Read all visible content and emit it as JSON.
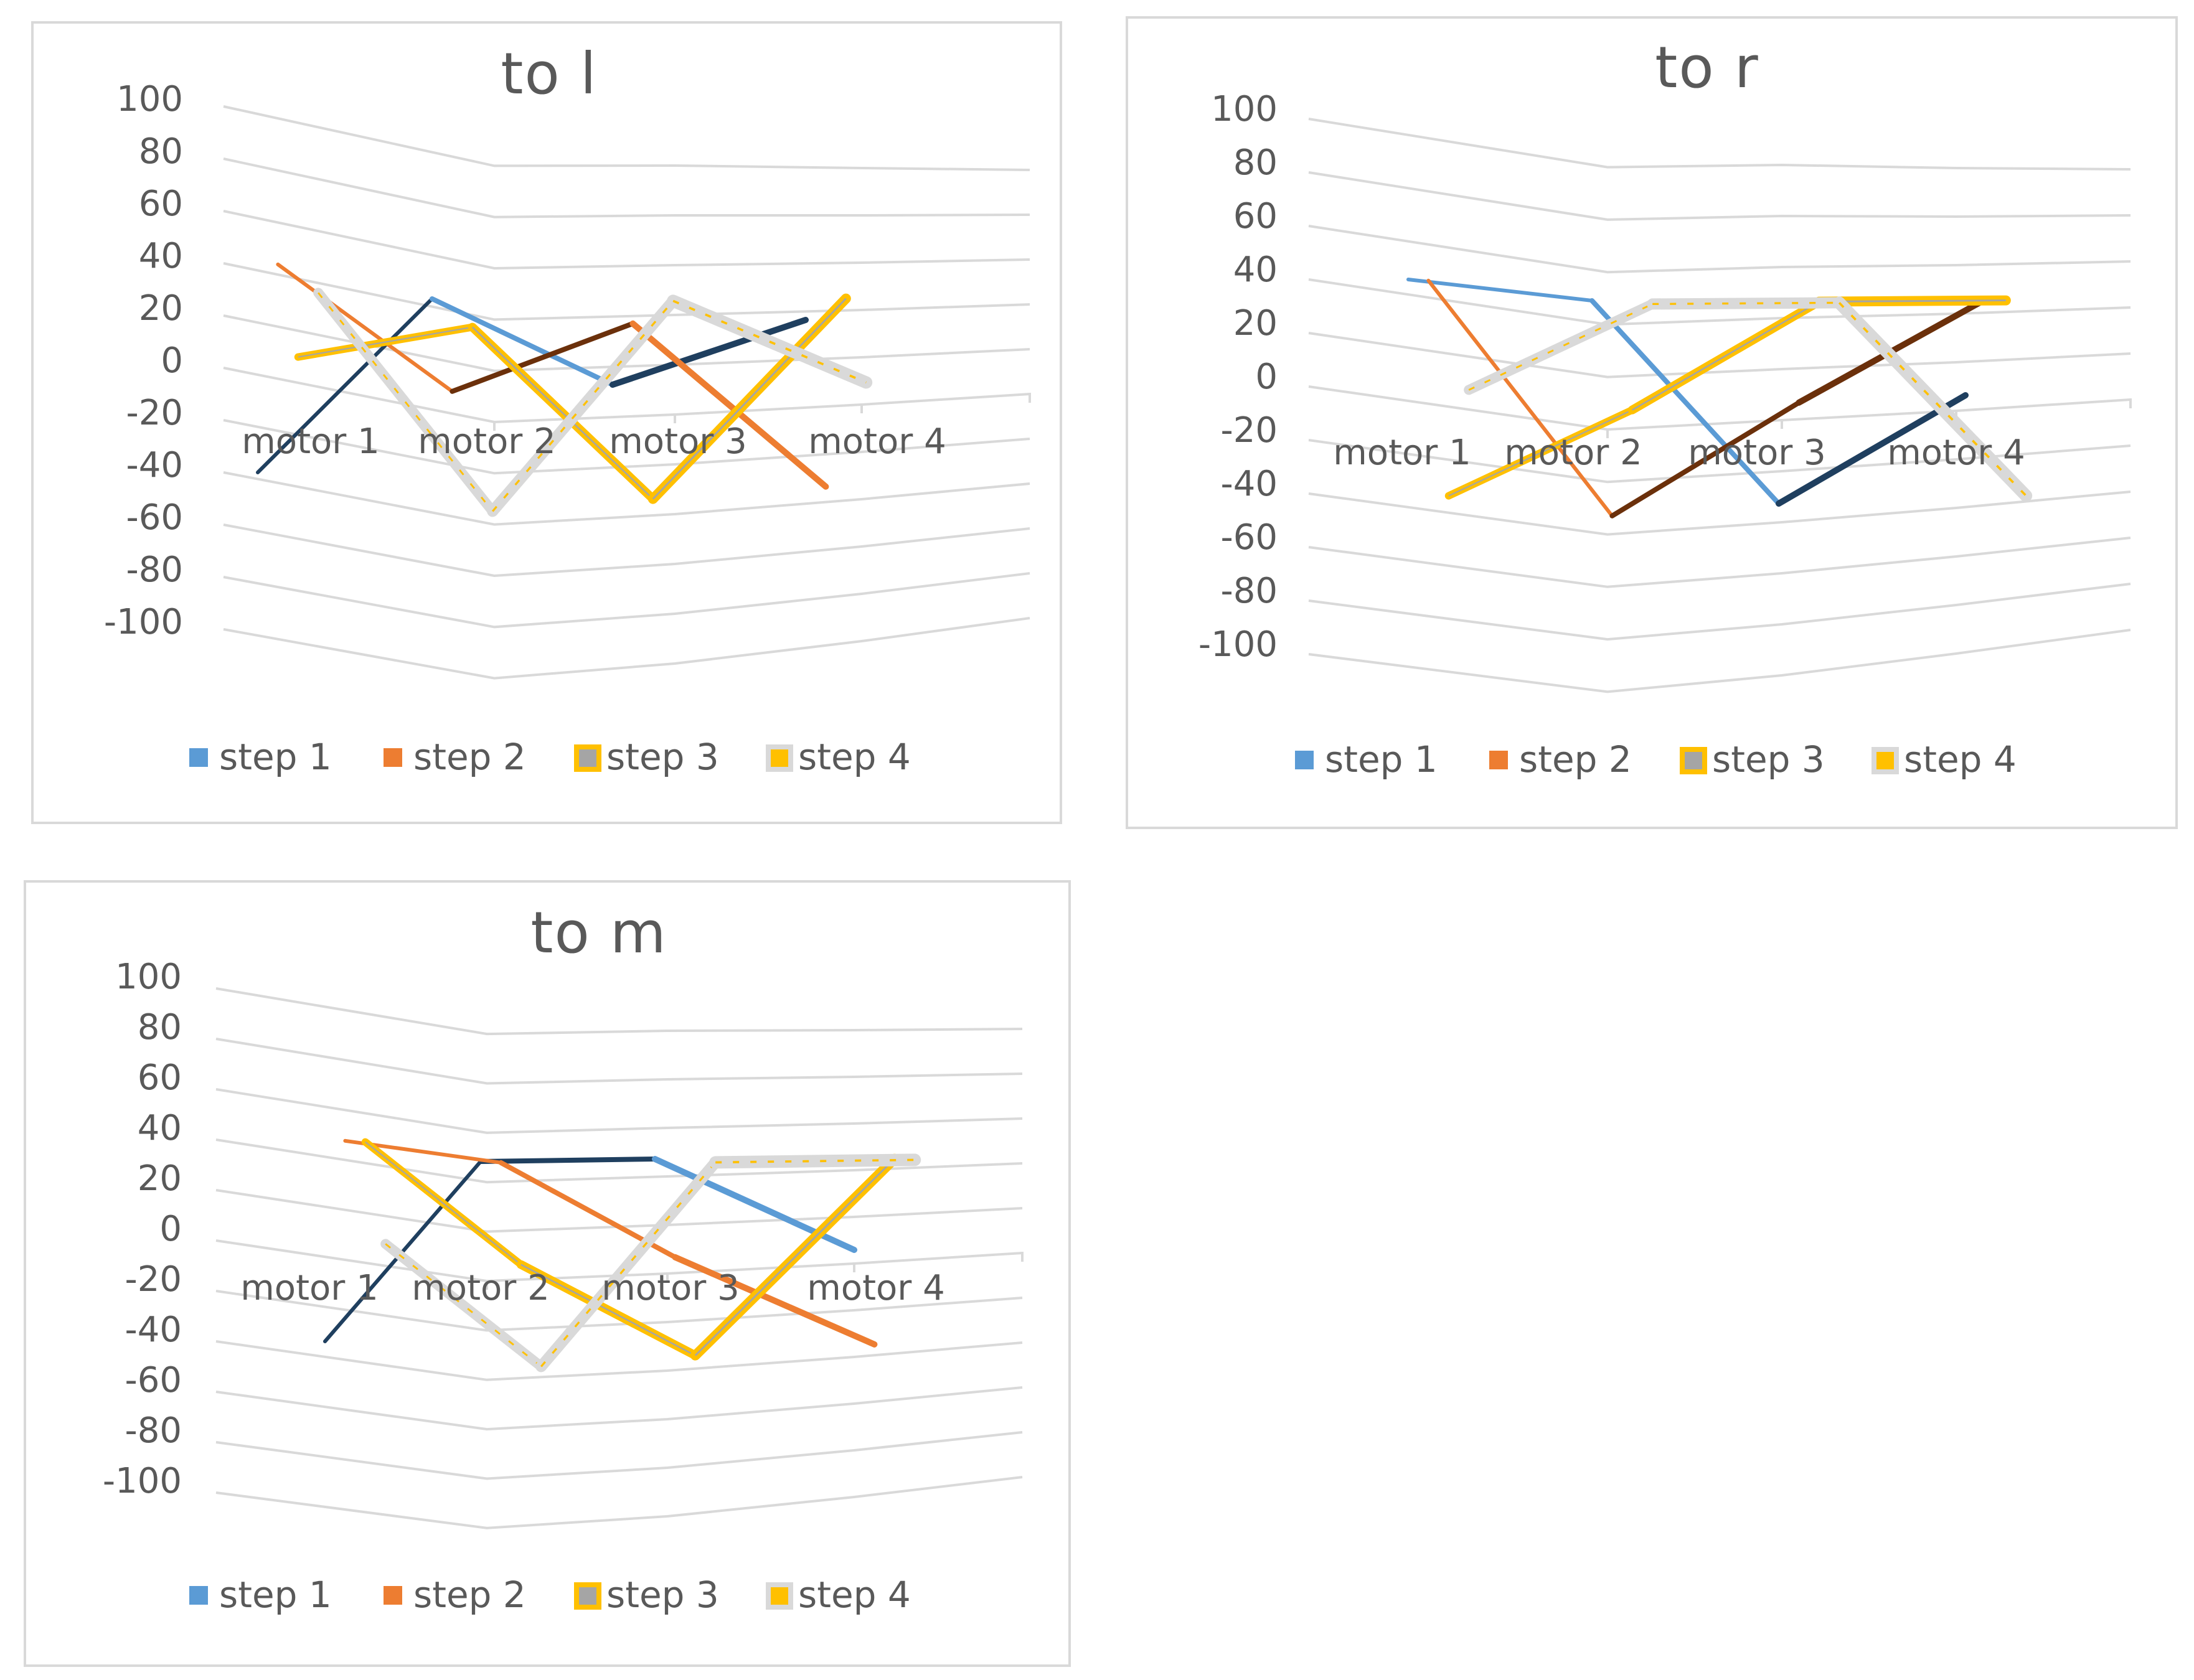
{
  "colors": {
    "step1": "#5b9bd5",
    "step1_dark": "#1f3f5f",
    "step2": "#ed7d31",
    "step2_dark": "#6b300b",
    "step3": "#ffc000",
    "step3_inner": "#a5a5a5",
    "step4": "#d9d9d9",
    "step4_inner": "#ffc000",
    "text": "#595959",
    "grid": "#d9d9d9"
  },
  "chart_data": [
    {
      "type": "line",
      "title": "to l",
      "categories": [
        "motor 1",
        "motor 2",
        "motor 3",
        "motor 4"
      ],
      "yticks": [
        "100",
        "80",
        "60",
        "40",
        "20",
        "0",
        "-20",
        "-40",
        "-60",
        "-80",
        "-100"
      ],
      "ylim": [
        -100,
        100
      ],
      "legend": [
        "step 1",
        "step 2",
        "step 3",
        "step 4"
      ],
      "legend_position": "bottom",
      "series": [
        {
          "name": "step 1",
          "values": [
            -40,
            40,
            5,
            30
          ]
        },
        {
          "name": "step 2",
          "values": [
            40,
            5,
            30,
            -40
          ]
        },
        {
          "name": "step 3",
          "values": [
            5,
            30,
            -40,
            40
          ]
        },
        {
          "name": "step 4",
          "values": [
            30,
            -40,
            40,
            5
          ]
        }
      ]
    },
    {
      "type": "line",
      "title": "to r",
      "categories": [
        "motor 1",
        "motor 2",
        "motor 3",
        "motor 4"
      ],
      "yticks": [
        "100",
        "80",
        "60",
        "40",
        "20",
        "0",
        "-20",
        "-40",
        "-60",
        "-80",
        "-100"
      ],
      "ylim": [
        -100,
        100
      ],
      "legend": [
        "step 1",
        "step 2",
        "step 3",
        "step 4"
      ],
      "legend_position": "bottom",
      "series": [
        {
          "name": "step 1",
          "values": [
            40,
            40,
            -40,
            0
          ]
        },
        {
          "name": "step 2",
          "values": [
            40,
            -40,
            0,
            40
          ]
        },
        {
          "name": "step 3",
          "values": [
            -40,
            0,
            40,
            40
          ]
        },
        {
          "name": "step 4",
          "values": [
            0,
            40,
            40,
            -40
          ]
        }
      ]
    },
    {
      "type": "line",
      "title": "to m",
      "categories": [
        "motor 1",
        "motor 2",
        "motor 3",
        "motor 4"
      ],
      "yticks": [
        "100",
        "80",
        "60",
        "40",
        "20",
        "0",
        "-20",
        "-40",
        "-60",
        "-80",
        "-100"
      ],
      "ylim": [
        -100,
        100
      ],
      "legend": [
        "step 1",
        "step 2",
        "step 3",
        "step 4"
      ],
      "legend_position": "bottom",
      "series": [
        {
          "name": "step 1",
          "values": [
            -40,
            40,
            40,
            0
          ]
        },
        {
          "name": "step 2",
          "values": [
            40,
            40,
            0,
            -40
          ]
        },
        {
          "name": "step 3",
          "values": [
            40,
            0,
            -40,
            40
          ]
        },
        {
          "name": "step 4",
          "values": [
            0,
            -40,
            40,
            40
          ]
        }
      ]
    }
  ]
}
